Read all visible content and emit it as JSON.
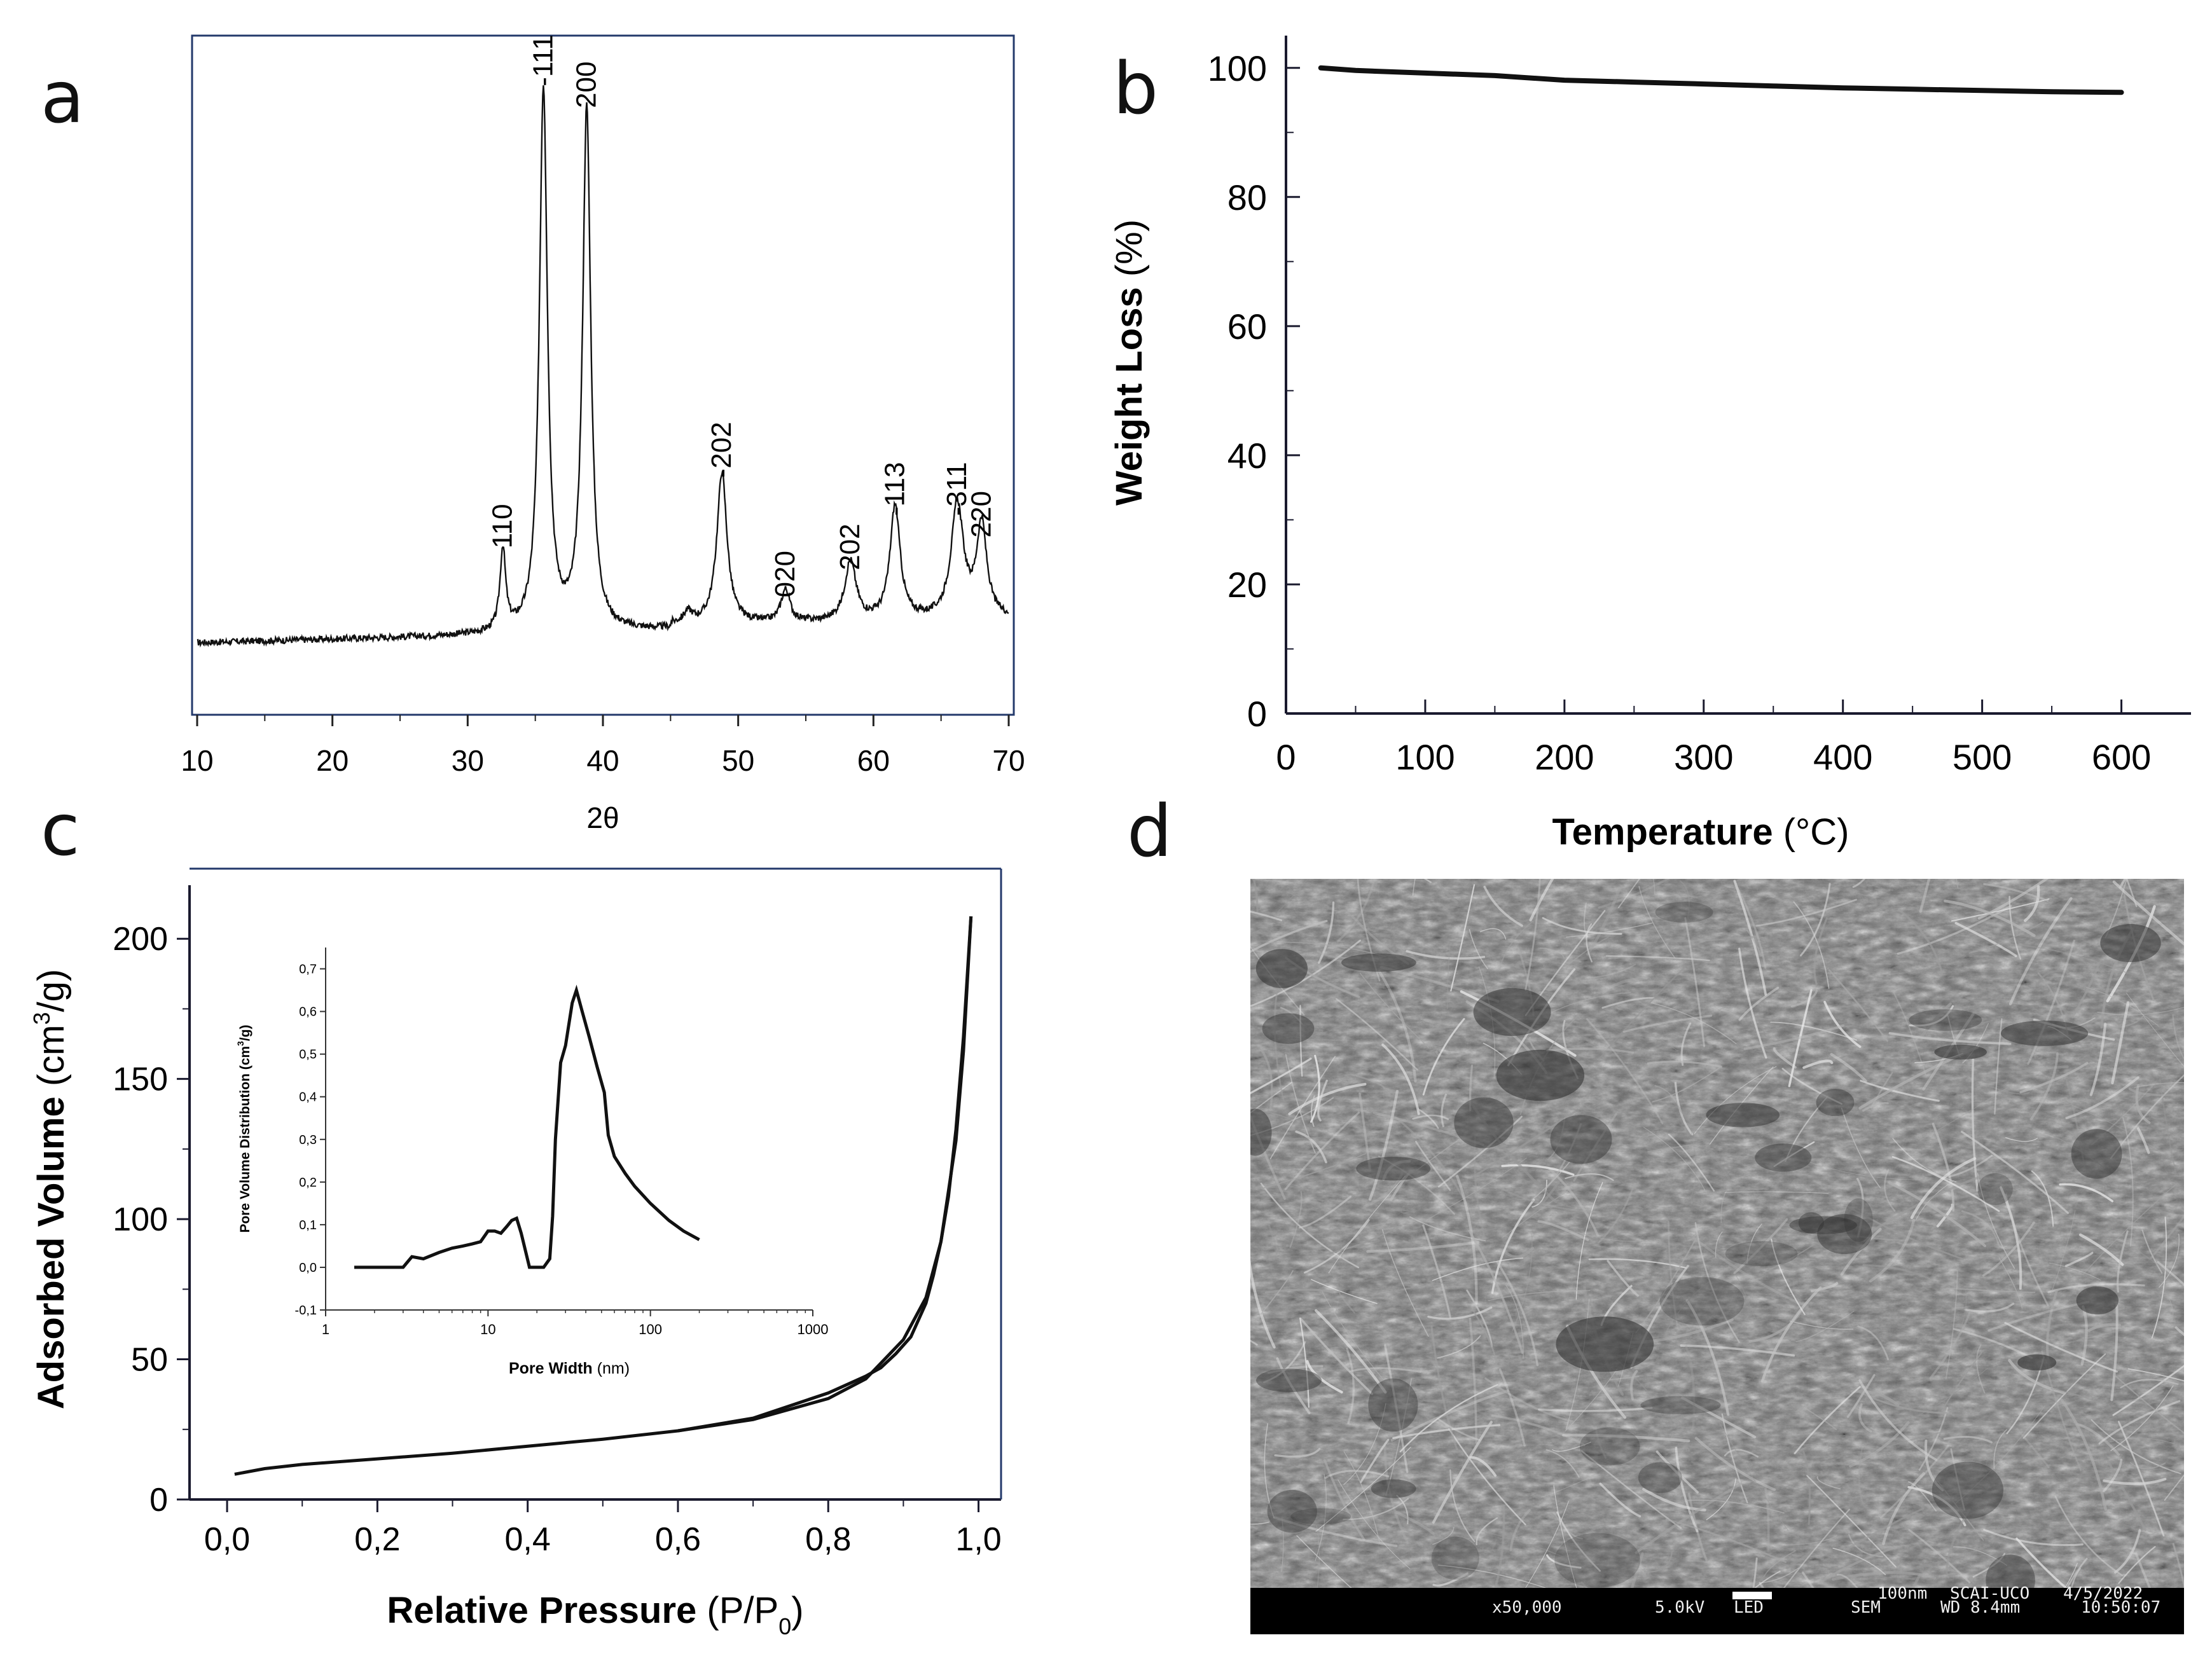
{
  "panel_labels": [
    "a",
    "b",
    "c",
    "d"
  ],
  "chart_data": [
    {
      "panel": "a",
      "type": "line",
      "xlabel": "2θ",
      "ylabel": "",
      "xlim": [
        10,
        70
      ],
      "xticks": [
        10,
        20,
        30,
        40,
        50,
        60,
        70
      ],
      "y_ticks_shown": false,
      "baseline": 0.04,
      "noise": 0.006,
      "peaks": [
        {
          "label": "110",
          "x": 32.6,
          "height": 0.15,
          "width": 0.25
        },
        {
          "label": "-111",
          "x": 35.6,
          "height": 1.0,
          "width": 0.36
        },
        {
          "label": "200",
          "x": 38.8,
          "height": 0.96,
          "width": 0.36
        },
        {
          "label": "",
          "x": 46.3,
          "height": 0.02,
          "width": 0.4
        },
        {
          "label": "-202",
          "x": 48.8,
          "height": 0.28,
          "width": 0.45
        },
        {
          "label": "020",
          "x": 53.5,
          "height": 0.06,
          "width": 0.4
        },
        {
          "label": "202",
          "x": 58.3,
          "height": 0.11,
          "width": 0.5
        },
        {
          "label": "-113",
          "x": 61.6,
          "height": 0.21,
          "width": 0.45
        },
        {
          "label": "-311",
          "x": 66.2,
          "height": 0.21,
          "width": 0.55
        },
        {
          "label": "220",
          "x": 68.0,
          "height": 0.17,
          "width": 0.45
        }
      ]
    },
    {
      "panel": "b",
      "type": "line",
      "xlabel": "Temperature",
      "xlabel_unit": "(°C)",
      "ylabel": "Weight Loss",
      "ylabel_unit": "(%)",
      "xlim": [
        0,
        650
      ],
      "ylim": [
        0,
        105
      ],
      "xticks": [
        0,
        100,
        200,
        300,
        400,
        500,
        600
      ],
      "yticks": [
        0,
        20,
        40,
        60,
        80,
        100
      ],
      "series": [
        {
          "x": [
            25,
            50,
            100,
            150,
            200,
            250,
            300,
            350,
            400,
            450,
            500,
            550,
            600
          ],
          "y": [
            100,
            99.6,
            99.2,
            98.8,
            98.1,
            97.8,
            97.5,
            97.2,
            96.9,
            96.7,
            96.5,
            96.3,
            96.2
          ]
        }
      ]
    },
    {
      "panel": "c",
      "type": "line",
      "xlabel": "Relative Pressure",
      "xlabel_unit_main": "(P/P",
      "xlabel_unit_sub": "0",
      "xlabel_unit_end": ")",
      "ylabel": "Adsorbed Volume",
      "ylabel_unit_pre": "(cm",
      "ylabel_unit_sup": "3",
      "ylabel_unit_post": "/g)",
      "xlim": [
        -0.05,
        1.03
      ],
      "ylim": [
        0,
        225
      ],
      "xticks": [
        0.0,
        0.2,
        0.4,
        0.6,
        0.8,
        1.0
      ],
      "xtick_labels": [
        "0,0",
        "0,2",
        "0,4",
        "0,6",
        "0,8",
        "1,0"
      ],
      "yticks": [
        0,
        50,
        100,
        150,
        200
      ],
      "series": [
        {
          "x": [
            0.01,
            0.05,
            0.1,
            0.2,
            0.3,
            0.4,
            0.5,
            0.6,
            0.7,
            0.8,
            0.85,
            0.9,
            0.93,
            0.95,
            0.97,
            0.98,
            0.99
          ],
          "y": [
            9,
            11,
            12.5,
            14.5,
            16.5,
            19,
            21.5,
            24.5,
            28.5,
            36,
            43,
            57,
            72,
            92,
            128,
            160,
            208
          ]
        },
        {
          "x": [
            0.99,
            0.98,
            0.97,
            0.96,
            0.95,
            0.94,
            0.93,
            0.91,
            0.89,
            0.87,
            0.85,
            0.8,
            0.7,
            0.6
          ],
          "y": [
            208,
            165,
            132,
            108,
            92,
            80,
            70,
            58,
            52,
            47,
            44,
            38,
            29,
            24.5
          ]
        }
      ],
      "inset": {
        "xlabel": "Pore Width",
        "xlabel_unit": "(nm)",
        "ylabel_pre": "Pore Volume Distribution (cm",
        "ylabel_sup": "3",
        "ylabel_post": "/g)",
        "xscale": "log",
        "xlim": [
          1,
          1000
        ],
        "ylim": [
          -0.1,
          0.75
        ],
        "xticks": [
          1,
          10,
          100,
          1000
        ],
        "xtick_labels": [
          "1",
          "10",
          "100",
          "1000"
        ],
        "yticks": [
          -0.1,
          0.0,
          0.1,
          0.2,
          0.3,
          0.4,
          0.5,
          0.6,
          0.7
        ],
        "ytick_labels": [
          "-0,1",
          "0,0",
          "0,1",
          "0,2",
          "0,3",
          "0,4",
          "0,5",
          "0,6",
          "0,7"
        ],
        "series": [
          {
            "x": [
              1.5,
              3,
              3.4,
              4,
              5,
              6,
              7,
              8,
              9,
              10,
              11,
              12,
              13,
              14,
              15,
              16,
              18,
              20,
              22,
              24,
              25,
              26,
              28,
              30,
              33,
              35,
              38,
              42,
              47,
              52,
              55,
              60,
              70,
              80,
              100,
              130,
              160,
              200
            ],
            "y": [
              0.0,
              0.0,
              0.025,
              0.02,
              0.035,
              0.045,
              0.05,
              0.055,
              0.06,
              0.085,
              0.085,
              0.08,
              0.095,
              0.11,
              0.115,
              0.08,
              0.0,
              0.0,
              0.0,
              0.02,
              0.12,
              0.3,
              0.48,
              0.52,
              0.62,
              0.65,
              0.6,
              0.54,
              0.47,
              0.41,
              0.31,
              0.26,
              0.22,
              0.19,
              0.15,
              0.11,
              0.085,
              0.065
            ]
          }
        ]
      }
    }
  ],
  "sem": {
    "magnification": "x50,000",
    "voltage": "5.0kV",
    "detector": "LED",
    "scale": "100nm",
    "facility": "SCAI-UCO",
    "date": "4/5/2022",
    "mode": "SEM",
    "working_distance": "WD 8.4mm",
    "time": "10:50:07"
  }
}
